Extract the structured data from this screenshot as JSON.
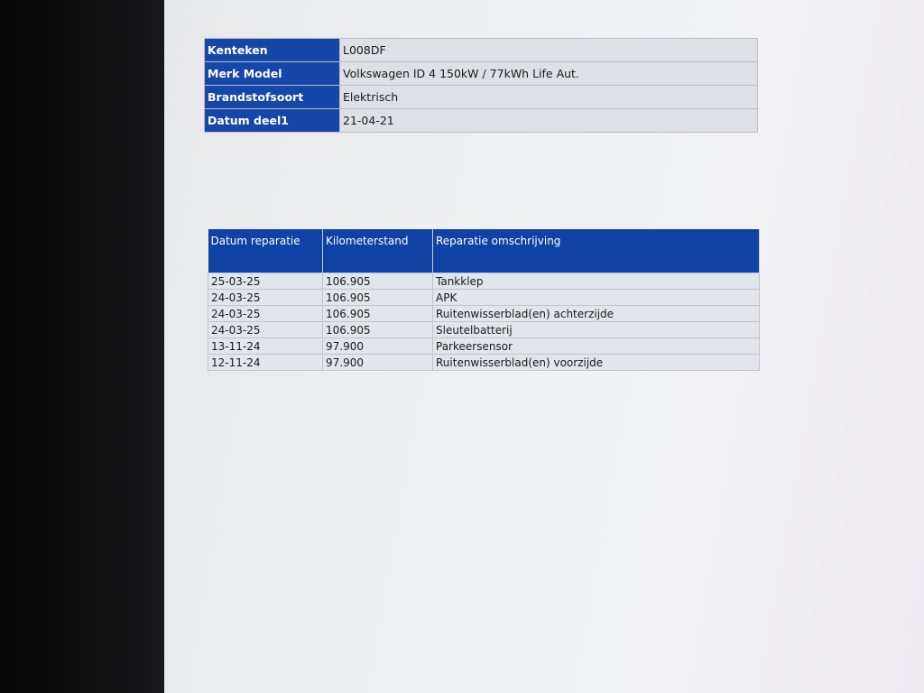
{
  "vehicle_info": [
    {
      "label": "Kenteken",
      "value": "L008DF"
    },
    {
      "label": "Merk Model",
      "value": "Volkswagen ID 4 150kW / 77kWh Life Aut."
    },
    {
      "label": "Brandstofsoort",
      "value": "Elektrisch"
    },
    {
      "label": "Datum deel1",
      "value": "21-04-21"
    }
  ],
  "repairs": {
    "headers": [
      "Datum reparatie",
      "Kilometerstand",
      "Reparatie omschrijving"
    ],
    "rows": [
      [
        "25-03-25",
        "106.905",
        "Tankklep"
      ],
      [
        "24-03-25",
        "106.905",
        "APK"
      ],
      [
        "24-03-25",
        "106.905",
        "Ruitenwisserblad(en) achterzijde"
      ],
      [
        "24-03-25",
        "106.905",
        "Sleutelbatterij"
      ],
      [
        "13-11-24",
        "97.900",
        "Parkeersensor"
      ],
      [
        "12-11-24",
        "97.900",
        "Ruitenwisserblad(en) voorzijde"
      ]
    ]
  },
  "colors": {
    "header_blue": "#1546a8",
    "cell_gray": "#dde0e5"
  }
}
